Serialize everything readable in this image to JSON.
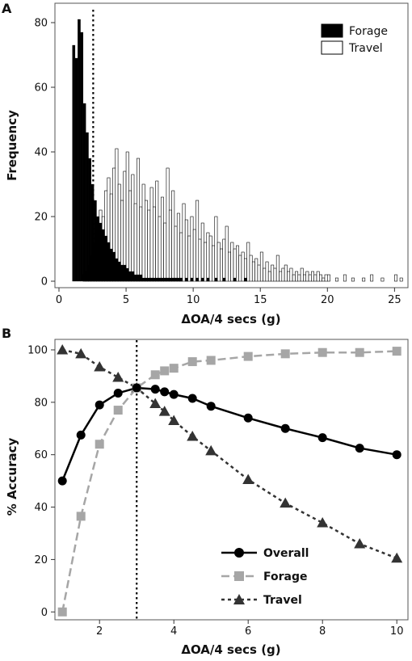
{
  "chart_data": [
    {
      "type": "bar",
      "panel_label": "A",
      "xlabel": "ΔOA/4 secs (g)",
      "ylabel": "Frequency",
      "xlim": [
        -0.3,
        26
      ],
      "ylim": [
        -2,
        86
      ],
      "x_ticks": [
        0,
        5,
        10,
        15,
        20,
        25
      ],
      "y_ticks": [
        0,
        20,
        40,
        60,
        80
      ],
      "threshold_x": 2.55,
      "bin_width": 0.2,
      "legend_position": "top-right",
      "series": [
        {
          "name": "Forage",
          "color": "#000000",
          "x": [
            1.0,
            1.2,
            1.4,
            1.6,
            1.8,
            2.0,
            2.2,
            2.4,
            2.6,
            2.8,
            3.0,
            3.2,
            3.4,
            3.6,
            3.8,
            4.0,
            4.2,
            4.4,
            4.6,
            4.8,
            5.0,
            5.2,
            5.4,
            5.6,
            5.8,
            6.0,
            6.2,
            6.4,
            6.6,
            6.8,
            7.0,
            7.2,
            7.4,
            7.6,
            7.8,
            8.0,
            8.2,
            8.4,
            8.6,
            8.8,
            9.0,
            9.4,
            9.8,
            10.2,
            10.6,
            11.0,
            11.6,
            12.2,
            13.0,
            13.8
          ],
          "values": [
            73,
            69,
            81,
            77,
            55,
            46,
            38,
            30,
            25,
            20,
            18,
            16,
            14,
            12,
            10,
            9,
            7,
            6,
            5,
            5,
            4,
            3,
            3,
            2,
            2,
            2,
            1,
            1,
            1,
            1,
            1,
            1,
            1,
            1,
            1,
            1,
            1,
            1,
            1,
            1,
            1,
            1,
            1,
            1,
            1,
            1,
            1,
            1,
            1,
            1
          ]
        },
        {
          "name": "Travel",
          "color": "#ffffff",
          "x": [
            1.8,
            2.0,
            2.2,
            2.4,
            2.6,
            2.8,
            3.0,
            3.2,
            3.4,
            3.6,
            3.8,
            4.0,
            4.2,
            4.4,
            4.6,
            4.8,
            5.0,
            5.2,
            5.4,
            5.6,
            5.8,
            6.0,
            6.2,
            6.4,
            6.6,
            6.8,
            7.0,
            7.2,
            7.4,
            7.6,
            7.8,
            8.0,
            8.2,
            8.4,
            8.6,
            8.8,
            9.0,
            9.2,
            9.4,
            9.6,
            9.8,
            10.0,
            10.2,
            10.4,
            10.6,
            10.8,
            11.0,
            11.2,
            11.4,
            11.6,
            11.8,
            12.0,
            12.2,
            12.4,
            12.6,
            12.8,
            13.0,
            13.2,
            13.4,
            13.6,
            13.8,
            14.0,
            14.2,
            14.4,
            14.6,
            14.8,
            15.0,
            15.2,
            15.4,
            15.6,
            15.8,
            16.0,
            16.2,
            16.4,
            16.6,
            16.8,
            17.0,
            17.2,
            17.4,
            17.6,
            17.8,
            18.0,
            18.2,
            18.4,
            18.6,
            18.8,
            19.0,
            19.2,
            19.4,
            19.6,
            19.8,
            20.0,
            20.6,
            21.2,
            21.8,
            22.6,
            23.2,
            24.0,
            25.0,
            25.4
          ],
          "values": [
            2,
            3,
            5,
            8,
            12,
            18,
            22,
            20,
            28,
            32,
            27,
            35,
            41,
            30,
            25,
            34,
            40,
            28,
            33,
            24,
            38,
            23,
            30,
            25,
            22,
            29,
            23,
            31,
            20,
            26,
            18,
            35,
            22,
            28,
            17,
            21,
            15,
            24,
            19,
            14,
            20,
            16,
            25,
            13,
            18,
            12,
            15,
            14,
            11,
            20,
            12,
            10,
            13,
            17,
            9,
            12,
            10,
            11,
            8,
            9,
            7,
            12,
            8,
            6,
            7,
            5,
            9,
            4,
            6,
            3,
            5,
            4,
            8,
            3,
            4,
            5,
            3,
            4,
            2,
            3,
            2,
            4,
            2,
            3,
            2,
            3,
            2,
            3,
            2,
            1,
            2,
            2,
            1,
            2,
            1,
            1,
            2,
            1,
            2,
            1
          ]
        }
      ]
    },
    {
      "type": "line",
      "panel_label": "B",
      "xlabel": "ΔOA/4 secs (g)",
      "ylabel": "% Accuracy",
      "xlim": [
        0.8,
        10.3
      ],
      "ylim": [
        -3,
        104
      ],
      "x_ticks": [
        2,
        4,
        6,
        8,
        10
      ],
      "y_ticks": [
        0,
        20,
        40,
        60,
        80,
        100
      ],
      "threshold_x": 3.0,
      "legend_position": "bottom-right",
      "series": [
        {
          "name": "Overall",
          "color": "#000000",
          "line": "solid",
          "marker": "circle",
          "x": [
            1.0,
            1.5,
            2.0,
            2.5,
            3.0,
            3.5,
            3.75,
            4.0,
            4.5,
            5.0,
            6.0,
            7.0,
            8.0,
            9.0,
            10.0
          ],
          "values": [
            50,
            67.5,
            79,
            83.5,
            85.5,
            85,
            84,
            83,
            81.5,
            78.5,
            74,
            70,
            66.5,
            62.5,
            60
          ]
        },
        {
          "name": "Forage",
          "color": "#a6a6a6",
          "line": "dashed",
          "marker": "square",
          "x": [
            1.0,
            1.5,
            2.0,
            2.5,
            3.0,
            3.5,
            3.75,
            4.0,
            4.5,
            5.0,
            6.0,
            7.0,
            8.0,
            9.0,
            10.0
          ],
          "values": [
            0,
            36.5,
            64,
            77,
            85.5,
            90.5,
            92,
            93,
            95.5,
            96,
            97.5,
            98.5,
            99,
            99,
            99.5
          ]
        },
        {
          "name": "Travel",
          "color": "#333333",
          "line": "dotted",
          "marker": "triangle",
          "x": [
            1.0,
            1.5,
            2.0,
            2.5,
            3.0,
            3.5,
            3.75,
            4.0,
            4.5,
            5.0,
            6.0,
            7.0,
            8.0,
            9.0,
            10.0
          ],
          "values": [
            100,
            98.5,
            93.5,
            89.5,
            85.5,
            79.5,
            76.5,
            73,
            67,
            61.5,
            50.5,
            41.5,
            34,
            26,
            20.5
          ]
        }
      ]
    }
  ]
}
